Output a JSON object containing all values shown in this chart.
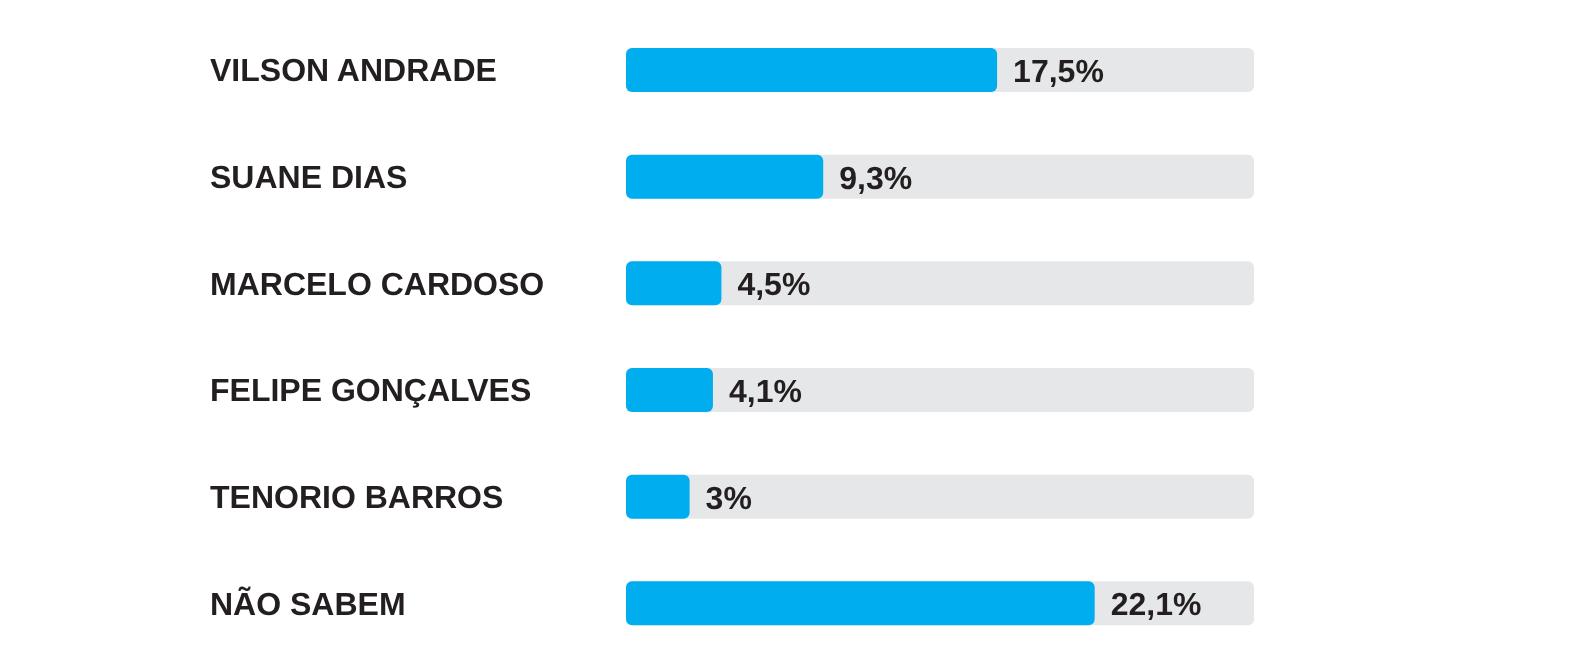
{
  "chart_data": {
    "type": "bar",
    "orientation": "horizontal",
    "categories": [
      "VILSON ANDRADE",
      "SUANE DIAS",
      "MARCELO CARDOSO",
      "FELIPE GONÇALVES",
      "TENORIO BARROS",
      "NÃO SABEM"
    ],
    "values": [
      17.5,
      9.3,
      4.5,
      4.1,
      3,
      22.1
    ],
    "value_labels": [
      "17,5%",
      "9,3%",
      "4,5%",
      "4,1%",
      "3%",
      "22,1%"
    ],
    "color": "#00aeef"
  }
}
